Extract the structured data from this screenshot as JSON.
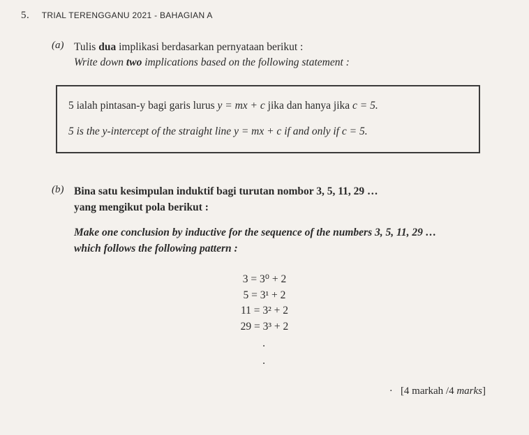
{
  "header": {
    "number": "5.",
    "source": "TRIAL TERENGGANU 2021 - BAHAGIAN A"
  },
  "partA": {
    "label": "(a)",
    "line1_prefix": "Tulis ",
    "line1_bold": "dua",
    "line1_suffix": " implikasi berdasarkan pernyataan berikut :",
    "line2_prefix": "Write down ",
    "line2_bold": "two",
    "line2_suffix": " implications based on the following statement :",
    "box_line1_a": "5 ialah pintasan-y bagi garis lurus ",
    "box_line1_eq": "y = mx + c",
    "box_line1_b": " jika dan hanya jika ",
    "box_line1_c": "c = 5.",
    "box_line2_a": "5 is the y-intercept of the straight line ",
    "box_line2_eq": "y = mx + c",
    "box_line2_b": "  if and only if c = 5."
  },
  "partB": {
    "label": "(b)",
    "line1": "Bina satu kesimpulan induktif bagi turutan nombor 3, 5, 11, 29 …",
    "line2": "yang mengikut pola berikut :",
    "line3": "Make one conclusion by inductive for the sequence of the numbers 3, 5, 11, 29 …",
    "line4": "which follows the following pattern :",
    "pattern": {
      "p1": "3 = 3⁰ + 2",
      "p2": "5 = 3¹ + 2",
      "p3": "11 = 3² + 2",
      "p4": "29 = 3³ + 2"
    }
  },
  "marks": {
    "prefix": "[4 markah /4 ",
    "italic": "marks",
    "suffix": "]"
  }
}
